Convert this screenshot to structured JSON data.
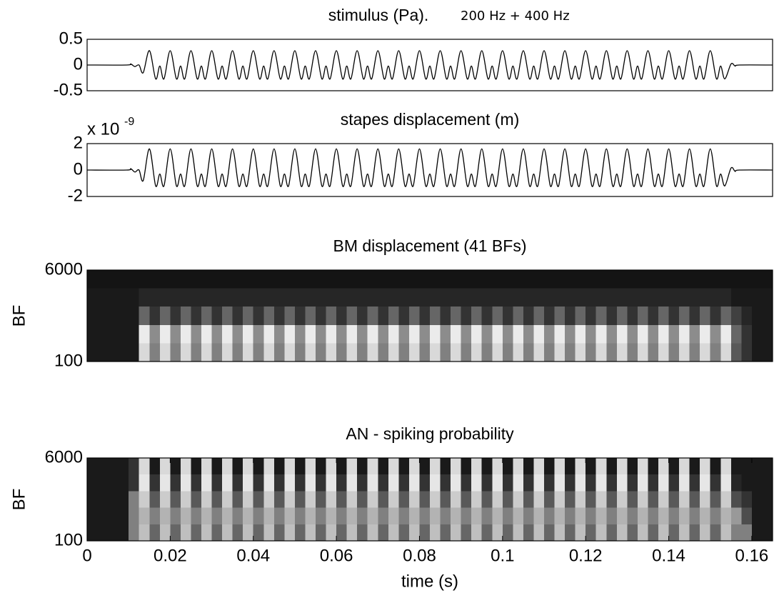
{
  "chart_data": [
    {
      "type": "line",
      "title": "stimulus (Pa).",
      "annotation": "200 Hz + 400 Hz",
      "color": "#000000",
      "xlim": [
        0,
        0.165
      ],
      "ylim": [
        -0.5,
        0.5
      ],
      "yticks": [
        -0.5,
        0,
        0.5
      ],
      "x": [
        0,
        0.0095,
        0.0105,
        0.0115,
        0.0125,
        0.0135,
        0.015,
        0.0165,
        0.0175,
        0.0185,
        0.02,
        0.0215,
        0.0225,
        0.0235,
        0.025,
        0.0265,
        0.0275,
        0.0285,
        0.03,
        0.0315,
        0.0325,
        0.0335,
        0.035,
        0.0365,
        0.0375,
        0.0385,
        0.04,
        0.0415,
        0.0425,
        0.0435,
        0.045,
        0.0465,
        0.0475,
        0.0485,
        0.05,
        0.0515,
        0.0525,
        0.0535,
        0.055,
        0.0565,
        0.0575,
        0.0585,
        0.06,
        0.0615,
        0.0625,
        0.0635,
        0.065,
        0.0665,
        0.0675,
        0.0685,
        0.07,
        0.0715,
        0.0725,
        0.0735,
        0.075,
        0.0765,
        0.0775,
        0.0785,
        0.08,
        0.0815,
        0.0825,
        0.0835,
        0.085,
        0.0865,
        0.0875,
        0.0885,
        0.09,
        0.0915,
        0.0925,
        0.0935,
        0.095,
        0.0965,
        0.0975,
        0.0985,
        0.1,
        0.1015,
        0.1025,
        0.1035,
        0.105,
        0.1065,
        0.1075,
        0.1085,
        0.11,
        0.1115,
        0.1125,
        0.1135,
        0.115,
        0.1165,
        0.1175,
        0.1185,
        0.12,
        0.1215,
        0.1225,
        0.1235,
        0.125,
        0.1265,
        0.1275,
        0.1285,
        0.13,
        0.1315,
        0.1325,
        0.1335,
        0.135,
        0.1365,
        0.1375,
        0.1385,
        0.14,
        0.1415,
        0.1425,
        0.1435,
        0.145,
        0.1465,
        0.1475,
        0.1485,
        0.15,
        0.1515,
        0.1525,
        0.1535,
        0.155,
        0.156,
        0.157,
        0.165
      ],
      "values": [
        0,
        0,
        0.02,
        -0.03,
        0,
        -0.15,
        0.28,
        -0.27,
        -0.02,
        -0.27,
        0.28,
        -0.27,
        -0.02,
        -0.27,
        0.28,
        -0.27,
        -0.02,
        -0.27,
        0.28,
        -0.27,
        -0.02,
        -0.27,
        0.28,
        -0.27,
        -0.02,
        -0.27,
        0.28,
        -0.27,
        -0.02,
        -0.27,
        0.28,
        -0.27,
        -0.02,
        -0.27,
        0.28,
        -0.27,
        -0.02,
        -0.27,
        0.28,
        -0.27,
        -0.02,
        -0.27,
        0.28,
        -0.27,
        -0.02,
        -0.27,
        0.28,
        -0.27,
        -0.02,
        -0.27,
        0.28,
        -0.27,
        -0.02,
        -0.27,
        0.28,
        -0.27,
        -0.02,
        -0.27,
        0.28,
        -0.27,
        -0.02,
        -0.27,
        0.28,
        -0.27,
        -0.02,
        -0.27,
        0.28,
        -0.27,
        -0.02,
        -0.27,
        0.28,
        -0.27,
        -0.02,
        -0.27,
        0.28,
        -0.27,
        -0.02,
        -0.27,
        0.28,
        -0.27,
        -0.02,
        -0.27,
        0.28,
        -0.27,
        -0.02,
        -0.27,
        0.28,
        -0.27,
        -0.02,
        -0.27,
        0.28,
        -0.27,
        -0.02,
        -0.27,
        0.28,
        -0.27,
        -0.02,
        -0.27,
        0.28,
        -0.27,
        -0.02,
        -0.27,
        0.28,
        -0.27,
        -0.02,
        -0.27,
        0.28,
        -0.27,
        -0.02,
        -0.27,
        0.28,
        -0.27,
        -0.02,
        -0.27,
        0.28,
        -0.27,
        -0.02,
        -0.27,
        0.02,
        -0.02,
        0,
        0
      ]
    },
    {
      "type": "line",
      "title": "stapes displacement (m)",
      "y_multiplier": {
        "base": "x 10",
        "exponent": "-9"
      },
      "color": "#000000",
      "xlim": [
        0,
        0.165
      ],
      "ylim": [
        -2,
        2
      ],
      "yticks": [
        -2,
        0,
        2
      ],
      "x": [
        0,
        0.0095,
        0.0105,
        0.0115,
        0.0125,
        0.0135,
        0.015,
        0.0165,
        0.0175,
        0.0185,
        0.02,
        0.0215,
        0.0225,
        0.0235,
        0.025,
        0.0265,
        0.0275,
        0.0285,
        0.03,
        0.0315,
        0.0325,
        0.0335,
        0.035,
        0.0365,
        0.0375,
        0.0385,
        0.04,
        0.0415,
        0.0425,
        0.0435,
        0.045,
        0.0465,
        0.0475,
        0.0485,
        0.05,
        0.0515,
        0.0525,
        0.0535,
        0.055,
        0.0565,
        0.0575,
        0.0585,
        0.06,
        0.0615,
        0.0625,
        0.0635,
        0.065,
        0.0665,
        0.0675,
        0.0685,
        0.07,
        0.0715,
        0.0725,
        0.0735,
        0.075,
        0.0765,
        0.0775,
        0.0785,
        0.08,
        0.0815,
        0.0825,
        0.0835,
        0.085,
        0.0865,
        0.0875,
        0.0885,
        0.09,
        0.0915,
        0.0925,
        0.0935,
        0.095,
        0.0965,
        0.0975,
        0.0985,
        0.1,
        0.1015,
        0.1025,
        0.1035,
        0.105,
        0.1065,
        0.1075,
        0.1085,
        0.11,
        0.1115,
        0.1125,
        0.1135,
        0.115,
        0.1165,
        0.1175,
        0.1185,
        0.12,
        0.1215,
        0.1225,
        0.1235,
        0.125,
        0.1265,
        0.1275,
        0.1285,
        0.13,
        0.1315,
        0.1325,
        0.1335,
        0.135,
        0.1365,
        0.1375,
        0.1385,
        0.14,
        0.1415,
        0.1425,
        0.1435,
        0.145,
        0.1465,
        0.1475,
        0.1485,
        0.15,
        0.1515,
        0.1525,
        0.1535,
        0.155,
        0.156,
        0.157,
        0.165
      ],
      "values": [
        0,
        0,
        0.1,
        -0.15,
        0,
        -0.8,
        1.6,
        -1.2,
        -0.3,
        -1.2,
        1.6,
        -1.2,
        -0.3,
        -1.2,
        1.6,
        -1.2,
        -0.3,
        -1.2,
        1.6,
        -1.2,
        -0.3,
        -1.2,
        1.6,
        -1.2,
        -0.3,
        -1.2,
        1.6,
        -1.2,
        -0.3,
        -1.2,
        1.6,
        -1.2,
        -0.3,
        -1.2,
        1.6,
        -1.2,
        -0.3,
        -1.2,
        1.6,
        -1.2,
        -0.3,
        -1.2,
        1.6,
        -1.2,
        -0.3,
        -1.2,
        1.6,
        -1.2,
        -0.3,
        -1.2,
        1.6,
        -1.2,
        -0.3,
        -1.2,
        1.6,
        -1.2,
        -0.3,
        -1.2,
        1.6,
        -1.2,
        -0.3,
        -1.2,
        1.6,
        -1.2,
        -0.3,
        -1.2,
        1.6,
        -1.2,
        -0.3,
        -1.2,
        1.6,
        -1.2,
        -0.3,
        -1.2,
        1.6,
        -1.2,
        -0.3,
        -1.2,
        1.6,
        -1.2,
        -0.3,
        -1.2,
        1.6,
        -1.2,
        -0.3,
        -1.2,
        1.6,
        -1.2,
        -0.3,
        -1.2,
        1.6,
        -1.2,
        -0.3,
        -1.2,
        1.6,
        -1.2,
        -0.3,
        -1.2,
        1.6,
        -1.2,
        -0.3,
        -1.2,
        1.6,
        -1.2,
        -0.3,
        -1.2,
        1.6,
        -1.2,
        -0.3,
        -1.2,
        1.6,
        -1.2,
        -0.3,
        -1.2,
        1.6,
        -1.2,
        -0.3,
        -1.2,
        0.15,
        -0.1,
        0,
        0
      ]
    },
    {
      "type": "heatmap",
      "title": "BM displacement  (41 BFs)",
      "ylabel": "BF",
      "colormap": "gray",
      "xlim": [
        0,
        0.165
      ],
      "ylim": [
        100,
        6000
      ],
      "yticks": [
        100,
        6000
      ],
      "z": [
        [
          0.08,
          0.08,
          0.08,
          0.08,
          0.08,
          0.08,
          0.08,
          0.08,
          0.08,
          0.08,
          0.08,
          0.08,
          0.08,
          0.08,
          0.08,
          0.08,
          0.08,
          0.08,
          0.08,
          0.08,
          0.08,
          0.08,
          0.08,
          0.08,
          0.08,
          0.08,
          0.08,
          0.08,
          0.08,
          0.08,
          0.08,
          0.08,
          0.08,
          0.08,
          0.08,
          0.08,
          0.08,
          0.08,
          0.08,
          0.08,
          0.08,
          0.08,
          0.08,
          0.08,
          0.08,
          0.08,
          0.08,
          0.08,
          0.08,
          0.08,
          0.08,
          0.08,
          0.08,
          0.08,
          0.08,
          0.08,
          0.08,
          0.08,
          0.08,
          0.08,
          0.08,
          0.08,
          0.08,
          0.08,
          0.08,
          0.08
        ],
        [
          0.1,
          0.1,
          0.1,
          0.1,
          0.1,
          0.15,
          0.15,
          0.15,
          0.15,
          0.15,
          0.15,
          0.15,
          0.15,
          0.15,
          0.15,
          0.15,
          0.15,
          0.15,
          0.15,
          0.15,
          0.15,
          0.15,
          0.15,
          0.15,
          0.15,
          0.15,
          0.15,
          0.15,
          0.15,
          0.15,
          0.15,
          0.15,
          0.15,
          0.15,
          0.15,
          0.15,
          0.15,
          0.15,
          0.15,
          0.15,
          0.15,
          0.15,
          0.15,
          0.15,
          0.15,
          0.15,
          0.15,
          0.15,
          0.15,
          0.15,
          0.15,
          0.15,
          0.15,
          0.15,
          0.15,
          0.15,
          0.15,
          0.15,
          0.15,
          0.15,
          0.15,
          0.15,
          0.1,
          0.1,
          0.1,
          0.1
        ],
        [
          0.1,
          0.1,
          0.1,
          0.1,
          0.1,
          0.4,
          0.2,
          0.4,
          0.2,
          0.4,
          0.2,
          0.4,
          0.2,
          0.4,
          0.2,
          0.4,
          0.2,
          0.4,
          0.2,
          0.4,
          0.2,
          0.4,
          0.2,
          0.4,
          0.2,
          0.4,
          0.2,
          0.4,
          0.2,
          0.4,
          0.2,
          0.4,
          0.2,
          0.4,
          0.2,
          0.4,
          0.2,
          0.4,
          0.2,
          0.4,
          0.2,
          0.4,
          0.2,
          0.4,
          0.2,
          0.4,
          0.2,
          0.4,
          0.2,
          0.4,
          0.2,
          0.4,
          0.2,
          0.4,
          0.2,
          0.4,
          0.2,
          0.4,
          0.2,
          0.4,
          0.2,
          0.4,
          0.25,
          0.15,
          0.1,
          0.1
        ],
        [
          0.1,
          0.1,
          0.1,
          0.1,
          0.1,
          0.92,
          0.55,
          0.92,
          0.55,
          0.92,
          0.55,
          0.92,
          0.55,
          0.92,
          0.55,
          0.92,
          0.55,
          0.92,
          0.55,
          0.92,
          0.55,
          0.92,
          0.55,
          0.92,
          0.55,
          0.92,
          0.55,
          0.92,
          0.55,
          0.92,
          0.55,
          0.92,
          0.55,
          0.92,
          0.55,
          0.92,
          0.55,
          0.92,
          0.55,
          0.92,
          0.55,
          0.92,
          0.55,
          0.92,
          0.55,
          0.92,
          0.55,
          0.92,
          0.55,
          0.92,
          0.55,
          0.92,
          0.55,
          0.92,
          0.55,
          0.92,
          0.55,
          0.92,
          0.55,
          0.92,
          0.55,
          0.92,
          0.4,
          0.2,
          0.1,
          0.1
        ],
        [
          0.1,
          0.1,
          0.1,
          0.1,
          0.1,
          0.85,
          0.5,
          0.85,
          0.5,
          0.85,
          0.5,
          0.85,
          0.5,
          0.85,
          0.5,
          0.85,
          0.5,
          0.85,
          0.5,
          0.85,
          0.5,
          0.85,
          0.5,
          0.85,
          0.5,
          0.85,
          0.5,
          0.85,
          0.5,
          0.85,
          0.5,
          0.85,
          0.5,
          0.85,
          0.5,
          0.85,
          0.5,
          0.85,
          0.5,
          0.85,
          0.5,
          0.85,
          0.5,
          0.85,
          0.5,
          0.85,
          0.5,
          0.85,
          0.5,
          0.85,
          0.5,
          0.85,
          0.5,
          0.85,
          0.5,
          0.85,
          0.5,
          0.85,
          0.5,
          0.85,
          0.5,
          0.85,
          0.35,
          0.2,
          0.1,
          0.1
        ]
      ]
    },
    {
      "type": "heatmap",
      "title": "AN - spiking probability",
      "ylabel": "BF",
      "xlabel": "time (s)",
      "colormap": "gray",
      "xlim": [
        0,
        0.165
      ],
      "ylim": [
        100,
        6000
      ],
      "yticks": [
        100,
        6000
      ],
      "xticks": [
        0,
        0.02,
        0.04,
        0.06,
        0.08,
        0.1,
        0.12,
        0.14,
        0.16
      ],
      "z": [
        [
          0.1,
          0.1,
          0.1,
          0.1,
          0.2,
          0.85,
          0.1,
          0.85,
          0.1,
          0.85,
          0.1,
          0.85,
          0.1,
          0.85,
          0.1,
          0.85,
          0.1,
          0.85,
          0.1,
          0.85,
          0.1,
          0.85,
          0.1,
          0.85,
          0.1,
          0.85,
          0.1,
          0.85,
          0.1,
          0.85,
          0.1,
          0.85,
          0.1,
          0.85,
          0.1,
          0.85,
          0.1,
          0.85,
          0.1,
          0.85,
          0.1,
          0.85,
          0.1,
          0.85,
          0.1,
          0.85,
          0.1,
          0.85,
          0.1,
          0.85,
          0.1,
          0.85,
          0.1,
          0.85,
          0.1,
          0.85,
          0.1,
          0.85,
          0.1,
          0.85,
          0.1,
          0.85,
          0.1,
          0.1,
          0.1,
          0.1
        ],
        [
          0.1,
          0.1,
          0.1,
          0.1,
          0.2,
          0.9,
          0.2,
          0.9,
          0.2,
          0.9,
          0.2,
          0.9,
          0.2,
          0.9,
          0.2,
          0.9,
          0.2,
          0.9,
          0.2,
          0.9,
          0.2,
          0.9,
          0.2,
          0.9,
          0.2,
          0.9,
          0.2,
          0.9,
          0.2,
          0.9,
          0.2,
          0.9,
          0.2,
          0.9,
          0.2,
          0.9,
          0.2,
          0.9,
          0.2,
          0.9,
          0.2,
          0.9,
          0.2,
          0.9,
          0.2,
          0.9,
          0.2,
          0.9,
          0.2,
          0.9,
          0.2,
          0.9,
          0.2,
          0.9,
          0.2,
          0.9,
          0.2,
          0.9,
          0.2,
          0.9,
          0.2,
          0.9,
          0.15,
          0.1,
          0.1,
          0.1
        ],
        [
          0.1,
          0.1,
          0.1,
          0.1,
          0.5,
          0.8,
          0.35,
          0.8,
          0.35,
          0.8,
          0.35,
          0.8,
          0.35,
          0.8,
          0.35,
          0.8,
          0.35,
          0.8,
          0.35,
          0.8,
          0.35,
          0.8,
          0.35,
          0.8,
          0.35,
          0.8,
          0.35,
          0.8,
          0.35,
          0.8,
          0.35,
          0.8,
          0.35,
          0.8,
          0.35,
          0.8,
          0.35,
          0.8,
          0.35,
          0.8,
          0.35,
          0.8,
          0.35,
          0.8,
          0.35,
          0.8,
          0.35,
          0.8,
          0.35,
          0.8,
          0.35,
          0.8,
          0.35,
          0.8,
          0.35,
          0.8,
          0.35,
          0.8,
          0.35,
          0.8,
          0.35,
          0.8,
          0.3,
          0.2,
          0.1,
          0.1
        ],
        [
          0.1,
          0.1,
          0.1,
          0.1,
          0.5,
          0.7,
          0.5,
          0.7,
          0.5,
          0.7,
          0.5,
          0.7,
          0.5,
          0.7,
          0.5,
          0.7,
          0.5,
          0.7,
          0.5,
          0.7,
          0.5,
          0.7,
          0.5,
          0.7,
          0.5,
          0.7,
          0.5,
          0.7,
          0.5,
          0.7,
          0.5,
          0.7,
          0.5,
          0.7,
          0.5,
          0.7,
          0.5,
          0.7,
          0.5,
          0.7,
          0.5,
          0.7,
          0.5,
          0.7,
          0.5,
          0.7,
          0.5,
          0.7,
          0.5,
          0.7,
          0.5,
          0.7,
          0.5,
          0.7,
          0.5,
          0.7,
          0.5,
          0.7,
          0.5,
          0.7,
          0.5,
          0.7,
          0.6,
          0.3,
          0.1,
          0.1
        ],
        [
          0.1,
          0.1,
          0.1,
          0.1,
          0.5,
          0.75,
          0.4,
          0.75,
          0.4,
          0.75,
          0.4,
          0.75,
          0.4,
          0.75,
          0.4,
          0.75,
          0.4,
          0.75,
          0.4,
          0.75,
          0.4,
          0.75,
          0.4,
          0.75,
          0.4,
          0.75,
          0.4,
          0.75,
          0.4,
          0.75,
          0.4,
          0.75,
          0.4,
          0.75,
          0.4,
          0.75,
          0.4,
          0.75,
          0.4,
          0.75,
          0.4,
          0.75,
          0.4,
          0.75,
          0.4,
          0.75,
          0.4,
          0.75,
          0.4,
          0.75,
          0.4,
          0.75,
          0.4,
          0.75,
          0.4,
          0.75,
          0.4,
          0.75,
          0.4,
          0.75,
          0.4,
          0.75,
          0.5,
          0.5,
          0.1,
          0.1
        ]
      ]
    }
  ]
}
